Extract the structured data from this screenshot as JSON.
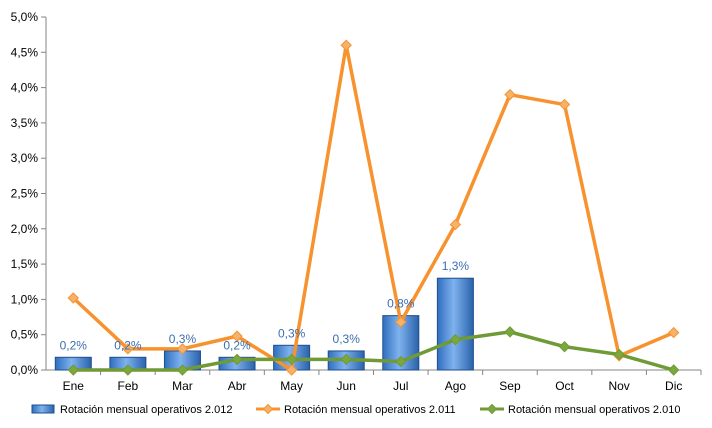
{
  "chart_data": {
    "type": "bar",
    "categories": [
      "Ene",
      "Feb",
      "Mar",
      "Abr",
      "May",
      "Jun",
      "Jul",
      "Ago",
      "Sep",
      "Oct",
      "Nov",
      "Dic"
    ],
    "ylim": [
      0,
      5.0
    ],
    "yticks": [
      "0,0%",
      "0,5%",
      "1,0%",
      "1,5%",
      "2,0%",
      "2,5%",
      "3,0%",
      "3,5%",
      "4,0%",
      "4,5%",
      "5,0%"
    ],
    "grid": false,
    "legend_position": "bottom",
    "series": [
      {
        "name": "Rotación mensual operativos 2.012",
        "kind": "bar",
        "color": "#3f7fd0",
        "values": [
          0.18,
          0.18,
          0.27,
          0.18,
          0.35,
          0.27,
          0.77,
          1.3,
          null,
          null,
          null,
          null
        ],
        "data_labels": [
          "0,2%",
          "0,2%",
          "0,3%",
          "0,2%",
          "0,3%",
          "0,3%",
          "0,8%",
          "1,3%",
          "",
          "",
          "",
          ""
        ]
      },
      {
        "name": "Rotación mensual operativos 2.011",
        "kind": "line",
        "color": "#f7922f",
        "marker_color": "#f5b26a",
        "values": [
          1.02,
          0.3,
          0.3,
          0.48,
          0.0,
          4.6,
          0.68,
          2.06,
          3.9,
          3.76,
          0.2,
          0.53
        ]
      },
      {
        "name": "Rotación mensual operativos 2.010",
        "kind": "line",
        "color": "#6f9a35",
        "marker_color": "#7aa83e",
        "values": [
          0.0,
          0.0,
          0.0,
          0.15,
          0.15,
          0.15,
          0.12,
          0.43,
          0.54,
          0.33,
          0.22,
          0.0
        ]
      }
    ]
  }
}
